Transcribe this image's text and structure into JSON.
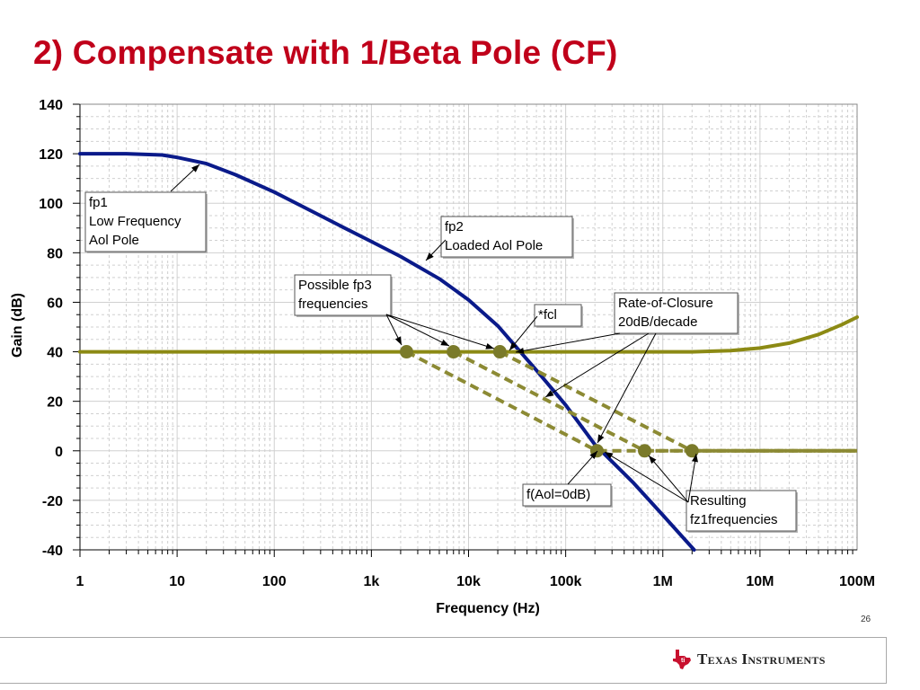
{
  "slide": {
    "title": "2) Compensate with 1/Beta Pole (CF)",
    "page_number": "26",
    "brand": {
      "logo_text": "Texas Instruments"
    }
  },
  "colors": {
    "title": "#c0001a",
    "aol_curve": "#0a1a8a",
    "beta_curve": "#8c8a14",
    "dashed": "#8c8a34",
    "marker": "#7a7a2a",
    "grid": "#d0d0d0"
  },
  "chart_data": {
    "type": "line",
    "title": "",
    "xlabel": "Frequency (Hz)",
    "ylabel": "Gain (dB)",
    "x_scale": "log",
    "xlim": [
      1,
      100000000
    ],
    "ylim": [
      -40,
      140
    ],
    "grid": true,
    "x_ticks": [
      {
        "value": 1,
        "label": "1"
      },
      {
        "value": 10,
        "label": "10"
      },
      {
        "value": 100,
        "label": "100"
      },
      {
        "value": 1000,
        "label": "1k"
      },
      {
        "value": 10000,
        "label": "10k"
      },
      {
        "value": 100000,
        "label": "100k"
      },
      {
        "value": 1000000,
        "label": "1M"
      },
      {
        "value": 10000000,
        "label": "10M"
      },
      {
        "value": 100000000,
        "label": "100M"
      }
    ],
    "y_ticks": [
      {
        "value": 140,
        "label": "140"
      },
      {
        "value": 120,
        "label": "120"
      },
      {
        "value": 100,
        "label": "100"
      },
      {
        "value": 80,
        "label": "80"
      },
      {
        "value": 60,
        "label": "60"
      },
      {
        "value": 40,
        "label": "40"
      },
      {
        "value": 20,
        "label": "20"
      },
      {
        "value": 0,
        "label": "0"
      },
      {
        "value": -20,
        "label": "-20"
      },
      {
        "value": -40,
        "label": "-40"
      }
    ],
    "series": [
      {
        "key": "aol",
        "style": "solid",
        "color": "#0a1a8a",
        "x": [
          1,
          3,
          7,
          10,
          20,
          40,
          100,
          200,
          500,
          1000,
          2000,
          5000,
          10000,
          20000,
          50000,
          100000,
          200000,
          500000,
          1000000,
          2100000
        ],
        "y": [
          120,
          120,
          119.5,
          118.5,
          116,
          111.5,
          104.5,
          98.5,
          90.5,
          84.5,
          78.5,
          69.5,
          61,
          50.5,
          32.5,
          18.5,
          2.5,
          -13,
          -26,
          -40
        ]
      },
      {
        "key": "beta",
        "style": "solid",
        "color": "#8c8a14",
        "x": [
          1,
          2000000,
          5000000,
          10000000,
          20000000,
          40000000,
          70000000,
          100000000
        ],
        "y": [
          40,
          40,
          40.5,
          41.5,
          43.5,
          47,
          51,
          54
        ]
      },
      {
        "key": "beta1",
        "style": "dashed",
        "color": "#8c8a34",
        "x": [
          2300,
          210000,
          100000000
        ],
        "y": [
          40,
          0,
          0
        ]
      },
      {
        "key": "beta2",
        "style": "dashed",
        "color": "#8c8a34",
        "x": [
          7000,
          650000,
          100000000
        ],
        "y": [
          40,
          0,
          0
        ]
      },
      {
        "key": "beta3",
        "style": "dashed",
        "color": "#8c8a34",
        "x": [
          21000,
          2000000,
          100000000
        ],
        "y": [
          40,
          0,
          0
        ]
      }
    ],
    "markers": [
      {
        "x": 2300,
        "y": 40
      },
      {
        "x": 7000,
        "y": 40
      },
      {
        "x": 21000,
        "y": 40
      },
      {
        "x": 210000,
        "y": 0
      },
      {
        "x": 650000,
        "y": 0
      },
      {
        "x": 2000000,
        "y": 0
      }
    ],
    "annotations": [
      {
        "key": "fp1",
        "lines": [
          "fp1",
          "Low Frequency",
          "Aol Pole"
        ]
      },
      {
        "key": "fp2",
        "lines": [
          "fp2",
          "Loaded Aol Pole"
        ]
      },
      {
        "key": "fp3",
        "lines": [
          "Possible fp3",
          "frequencies"
        ]
      },
      {
        "key": "fcl",
        "lines": [
          "*fcl"
        ]
      },
      {
        "key": "roc",
        "lines": [
          "Rate-of-Closure",
          "20dB/decade"
        ]
      },
      {
        "key": "faol",
        "lines": [
          "f(Aol=0dB)"
        ]
      },
      {
        "key": "fz1",
        "lines": [
          "Resulting",
          "fz1frequencies"
        ]
      }
    ]
  }
}
